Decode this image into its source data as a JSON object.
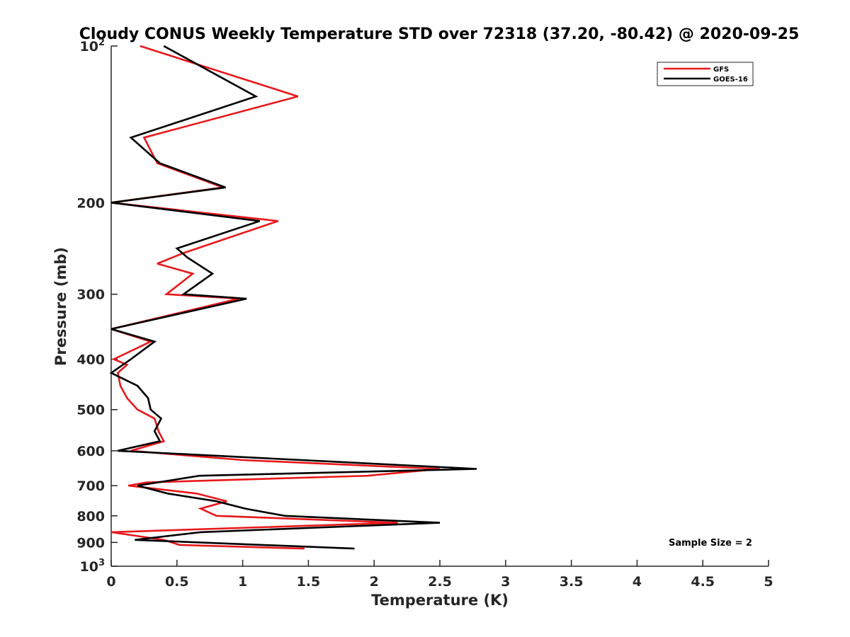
{
  "chart_data": {
    "type": "line",
    "title": "Cloudy CONUS Weekly Temperature STD over 72318 (37.20, -80.42) @ 2020-09-25",
    "xlabel": "Temperature (K)",
    "ylabel": "Pressure (mb)",
    "xlim": [
      0,
      5
    ],
    "ylim": [
      100,
      1000
    ],
    "y_scale": "log",
    "y_reversed": true,
    "x_ticks": [
      "0",
      "0.5",
      "1",
      "1.5",
      "2",
      "2.5",
      "3",
      "3.5",
      "4",
      "4.5",
      "5"
    ],
    "y_ticks": [
      {
        "value": 100,
        "base": "10",
        "exp": "2"
      },
      {
        "value": 200,
        "label": "200"
      },
      {
        "value": 300,
        "label": "300"
      },
      {
        "value": 400,
        "label": "400"
      },
      {
        "value": 500,
        "label": "500"
      },
      {
        "value": 600,
        "label": "600"
      },
      {
        "value": 700,
        "label": "700"
      },
      {
        "value": 800,
        "label": "800"
      },
      {
        "value": 900,
        "label": "900"
      },
      {
        "value": 1000,
        "base": "10",
        "exp": "3"
      }
    ],
    "grid": false,
    "legend_position": "top-right",
    "annotation": "Sample Size = 2",
    "series": [
      {
        "name": "GFS",
        "color": "#e8191c",
        "points": [
          [
            0.22,
            100
          ],
          [
            1.42,
            125
          ],
          [
            0.25,
            150
          ],
          [
            0.35,
            168
          ],
          [
            0.85,
            187
          ],
          [
            0.0,
            200
          ],
          [
            1.27,
            217
          ],
          [
            0.55,
            250
          ],
          [
            0.35,
            262
          ],
          [
            0.62,
            274
          ],
          [
            0.42,
            300
          ],
          [
            0.97,
            306
          ],
          [
            0.0,
            350
          ],
          [
            0.3,
            370
          ],
          [
            0.02,
            400
          ],
          [
            0.12,
            410
          ],
          [
            0.05,
            425
          ],
          [
            0.07,
            450
          ],
          [
            0.12,
            475
          ],
          [
            0.2,
            500
          ],
          [
            0.33,
            520
          ],
          [
            0.36,
            550
          ],
          [
            0.4,
            575
          ],
          [
            0.15,
            600
          ],
          [
            1.0,
            625
          ],
          [
            2.5,
            650
          ],
          [
            1.95,
            670
          ],
          [
            0.27,
            690
          ],
          [
            0.13,
            700
          ],
          [
            0.65,
            725
          ],
          [
            0.88,
            750
          ],
          [
            0.68,
            775
          ],
          [
            0.8,
            800
          ],
          [
            2.18,
            825
          ],
          [
            0.0,
            860
          ],
          [
            0.4,
            890
          ],
          [
            0.52,
            910
          ],
          [
            1.47,
            925
          ]
        ]
      },
      {
        "name": "GOES-16",
        "color": "#000000",
        "points": [
          [
            0.4,
            100
          ],
          [
            1.1,
            125
          ],
          [
            0.15,
            150
          ],
          [
            0.37,
            168
          ],
          [
            0.87,
            187
          ],
          [
            0.0,
            200
          ],
          [
            1.13,
            217
          ],
          [
            0.5,
            245
          ],
          [
            0.58,
            255
          ],
          [
            0.77,
            274
          ],
          [
            0.55,
            300
          ],
          [
            1.03,
            306
          ],
          [
            0.0,
            350
          ],
          [
            0.33,
            370
          ],
          [
            0.15,
            400
          ],
          [
            0.0,
            425
          ],
          [
            0.2,
            450
          ],
          [
            0.28,
            475
          ],
          [
            0.3,
            500
          ],
          [
            0.38,
            520
          ],
          [
            0.33,
            550
          ],
          [
            0.37,
            575
          ],
          [
            0.05,
            600
          ],
          [
            2.78,
            650
          ],
          [
            0.67,
            670
          ],
          [
            0.2,
            700
          ],
          [
            0.43,
            725
          ],
          [
            0.8,
            750
          ],
          [
            1.02,
            775
          ],
          [
            1.32,
            800
          ],
          [
            2.5,
            825
          ],
          [
            0.68,
            860
          ],
          [
            0.18,
            890
          ],
          [
            1.85,
            925
          ]
        ]
      }
    ]
  }
}
